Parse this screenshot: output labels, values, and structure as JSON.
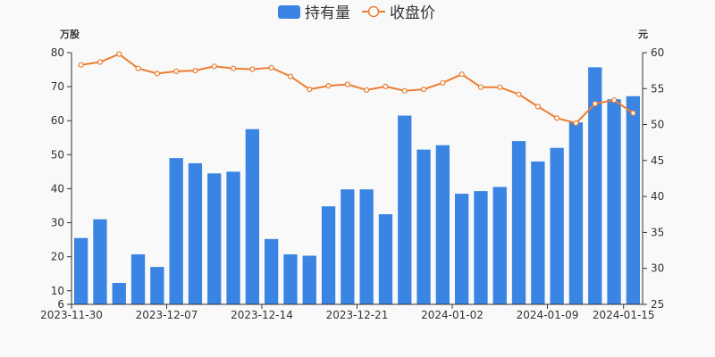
{
  "chart_data": {
    "type": "bar+line",
    "legend": [
      {
        "name": "持有量",
        "color": "#3a84e3"
      },
      {
        "name": "收盘价",
        "color": "#ed7d31"
      }
    ],
    "y_left_unit": "万股",
    "y_right_unit": "元",
    "y_left": {
      "min": 6,
      "max": 80,
      "ticks": [
        6,
        10,
        20,
        30,
        40,
        50,
        60,
        70,
        80
      ]
    },
    "y_right": {
      "min": 25,
      "max": 60,
      "ticks": [
        25,
        30,
        35,
        40,
        45,
        50,
        55,
        60
      ]
    },
    "x_tick_labels": [
      {
        "index": 0,
        "label": "2023-11-30"
      },
      {
        "index": 5,
        "label": "2023-12-07"
      },
      {
        "index": 10,
        "label": "2023-12-14"
      },
      {
        "index": 15,
        "label": "2023-12-21"
      },
      {
        "index": 20,
        "label": "2024-01-02"
      },
      {
        "index": 25,
        "label": "2024-01-09"
      },
      {
        "index": 29,
        "label": "2024-01-15"
      }
    ],
    "series": [
      {
        "name": "持有量",
        "kind": "bar",
        "color": "#3a84e3",
        "values": [
          25.5,
          31.0,
          12.3,
          20.7,
          17.0,
          49.0,
          47.5,
          44.5,
          45.0,
          57.5,
          25.2,
          20.7,
          20.3,
          34.8,
          39.8,
          39.8,
          32.5,
          61.5,
          51.5,
          52.8,
          38.5,
          39.3,
          40.5,
          54.0,
          48.0,
          52.0,
          59.5,
          75.7,
          66.3,
          67.2
        ]
      },
      {
        "name": "收盘价",
        "kind": "line",
        "color": "#ed7d31",
        "values": [
          58.3,
          58.7,
          59.8,
          57.8,
          57.1,
          57.4,
          57.5,
          58.1,
          57.8,
          57.7,
          57.9,
          56.7,
          54.9,
          55.4,
          55.6,
          54.8,
          55.3,
          54.7,
          54.9,
          55.8,
          57.0,
          55.2,
          55.2,
          54.2,
          52.5,
          50.9,
          50.2,
          52.9,
          53.4,
          51.6
        ]
      }
    ]
  }
}
